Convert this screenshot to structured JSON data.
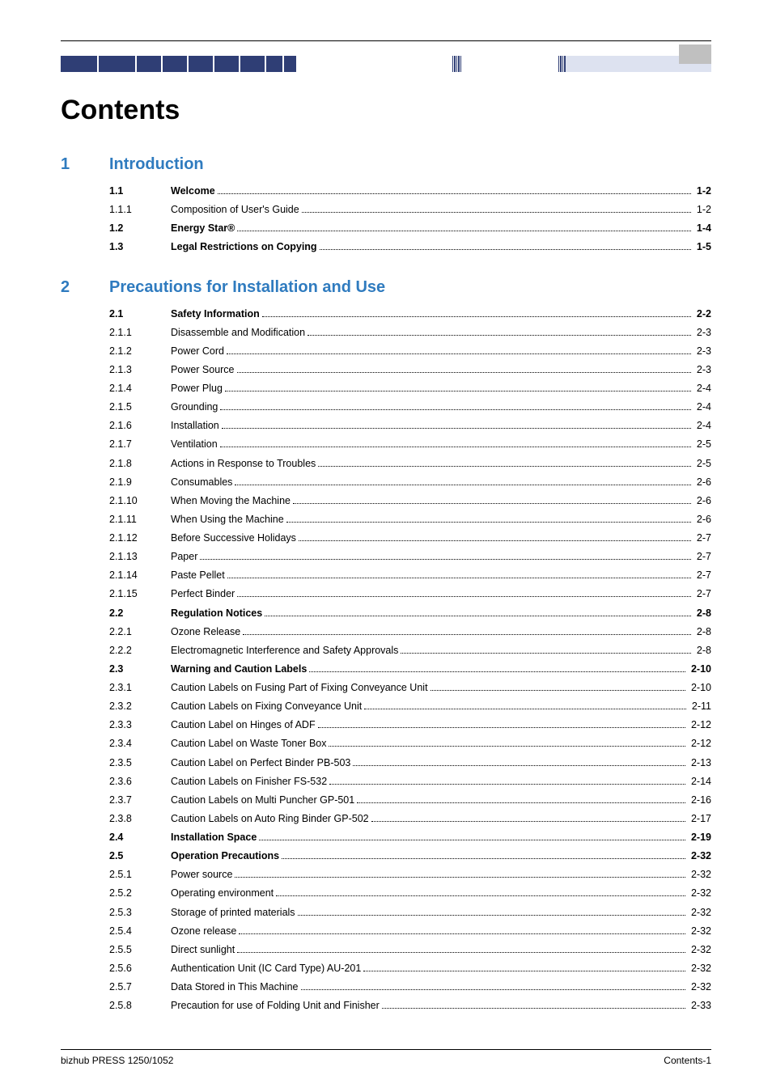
{
  "colors": {
    "heading_blue": "#2f7bbf",
    "dark_navy": "#2f3e75",
    "text_black": "#000000",
    "decor_light": "#dde2f0",
    "corner_grey": "#c0c0c0",
    "page_bg": "#ffffff"
  },
  "typography": {
    "title_fontsize": 34,
    "chapter_fontsize": 20,
    "body_fontsize": 12.5,
    "footer_fontsize": 12
  },
  "main_title": "Contents",
  "chapters": [
    {
      "num": "1",
      "title": "Introduction",
      "entries": [
        {
          "num": "1.1",
          "title": "Welcome",
          "page": "1-2",
          "bold": true
        },
        {
          "num": "1.1.1",
          "title": "Composition of User's Guide",
          "page": "1-2",
          "bold": false
        },
        {
          "num": "1.2",
          "title": "Energy Star®",
          "page": "1-4",
          "bold": true
        },
        {
          "num": "1.3",
          "title": "Legal Restrictions on Copying",
          "page": "1-5",
          "bold": true
        }
      ]
    },
    {
      "num": "2",
      "title": "Precautions for Installation and Use",
      "entries": [
        {
          "num": "2.1",
          "title": "Safety Information",
          "page": "2-2",
          "bold": true
        },
        {
          "num": "2.1.1",
          "title": "Disassemble and Modification",
          "page": "2-3",
          "bold": false
        },
        {
          "num": "2.1.2",
          "title": "Power Cord",
          "page": "2-3",
          "bold": false
        },
        {
          "num": "2.1.3",
          "title": "Power Source",
          "page": "2-3",
          "bold": false
        },
        {
          "num": "2.1.4",
          "title": "Power Plug",
          "page": "2-4",
          "bold": false
        },
        {
          "num": "2.1.5",
          "title": "Grounding",
          "page": "2-4",
          "bold": false
        },
        {
          "num": "2.1.6",
          "title": "Installation",
          "page": "2-4",
          "bold": false
        },
        {
          "num": "2.1.7",
          "title": "Ventilation",
          "page": "2-5",
          "bold": false
        },
        {
          "num": "2.1.8",
          "title": "Actions in Response to Troubles",
          "page": "2-5",
          "bold": false
        },
        {
          "num": "2.1.9",
          "title": "Consumables",
          "page": "2-6",
          "bold": false
        },
        {
          "num": "2.1.10",
          "title": "When Moving the Machine",
          "page": "2-6",
          "bold": false
        },
        {
          "num": "2.1.11",
          "title": "When Using the Machine",
          "page": "2-6",
          "bold": false
        },
        {
          "num": "2.1.12",
          "title": "Before Successive Holidays",
          "page": "2-7",
          "bold": false
        },
        {
          "num": "2.1.13",
          "title": "Paper",
          "page": "2-7",
          "bold": false
        },
        {
          "num": "2.1.14",
          "title": "Paste Pellet",
          "page": "2-7",
          "bold": false
        },
        {
          "num": "2.1.15",
          "title": "Perfect Binder",
          "page": "2-7",
          "bold": false
        },
        {
          "num": "2.2",
          "title": "Regulation Notices",
          "page": "2-8",
          "bold": true
        },
        {
          "num": "2.2.1",
          "title": "Ozone Release",
          "page": "2-8",
          "bold": false
        },
        {
          "num": "2.2.2",
          "title": "Electromagnetic Interference and Safety Approvals",
          "page": "2-8",
          "bold": false
        },
        {
          "num": "2.3",
          "title": "Warning and Caution Labels",
          "page": "2-10",
          "bold": true
        },
        {
          "num": "2.3.1",
          "title": "Caution Labels on Fusing Part of Fixing Conveyance Unit",
          "page": "2-10",
          "bold": false
        },
        {
          "num": "2.3.2",
          "title": "Caution Labels on Fixing Conveyance Unit",
          "page": "2-11",
          "bold": false
        },
        {
          "num": "2.3.3",
          "title": "Caution Label on Hinges of ADF",
          "page": "2-12",
          "bold": false
        },
        {
          "num": "2.3.4",
          "title": "Caution Label on Waste Toner Box",
          "page": "2-12",
          "bold": false
        },
        {
          "num": "2.3.5",
          "title": "Caution Label on Perfect Binder PB-503",
          "page": "2-13",
          "bold": false
        },
        {
          "num": "2.3.6",
          "title": "Caution Labels on Finisher FS-532",
          "page": "2-14",
          "bold": false
        },
        {
          "num": "2.3.7",
          "title": "Caution Labels on Multi Puncher GP-501",
          "page": "2-16",
          "bold": false
        },
        {
          "num": "2.3.8",
          "title": "Caution Labels on Auto Ring Binder GP-502",
          "page": "2-17",
          "bold": false
        },
        {
          "num": "2.4",
          "title": "Installation Space",
          "page": "2-19",
          "bold": true
        },
        {
          "num": "2.5",
          "title": "Operation Precautions",
          "page": "2-32",
          "bold": true
        },
        {
          "num": "2.5.1",
          "title": "Power source",
          "page": "2-32",
          "bold": false
        },
        {
          "num": "2.5.2",
          "title": "Operating environment",
          "page": "2-32",
          "bold": false
        },
        {
          "num": "2.5.3",
          "title": "Storage of printed materials",
          "page": "2-32",
          "bold": false
        },
        {
          "num": "2.5.4",
          "title": "Ozone release",
          "page": "2-32",
          "bold": false
        },
        {
          "num": "2.5.5",
          "title": "Direct sunlight",
          "page": "2-32",
          "bold": false
        },
        {
          "num": "2.5.6",
          "title": "Authentication Unit (IC Card Type) AU-201",
          "page": "2-32",
          "bold": false
        },
        {
          "num": "2.5.7",
          "title": "Data Stored in This Machine",
          "page": "2-32",
          "bold": false
        },
        {
          "num": "2.5.8",
          "title": "Precaution for use of Folding Unit and Finisher",
          "page": "2-33",
          "bold": false
        }
      ]
    }
  ],
  "footer": {
    "left": "bizhub PRESS 1250/1052",
    "right": "Contents-1"
  }
}
